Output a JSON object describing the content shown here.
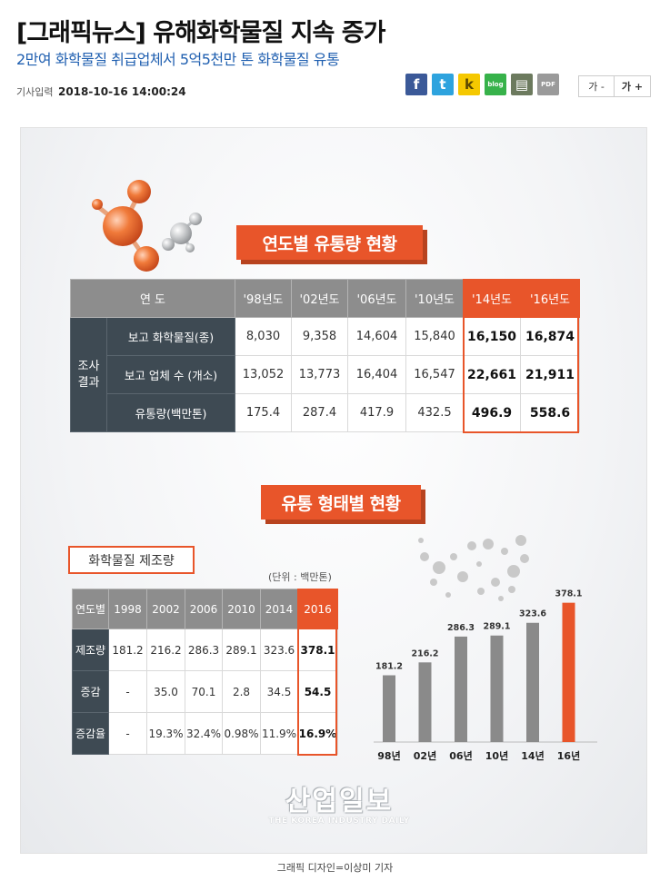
{
  "article": {
    "headline": "[그래픽뉴스] 유해화학물질 지속 증가",
    "subheadline": "2만여 화학물질 취급업체서 5억5천만 톤 화학물질 유통",
    "date_label": "기사입력",
    "date_value": "2018-10-16 14:00:24",
    "caption": "그래픽 디자인=이상미 기자"
  },
  "share_buttons": [
    {
      "icon": "facebook-icon",
      "glyph": "f"
    },
    {
      "icon": "twitter-icon",
      "glyph": "t"
    },
    {
      "icon": "kakaostory-icon",
      "glyph": "k"
    },
    {
      "icon": "blog-icon",
      "glyph": "blog"
    },
    {
      "icon": "print-icon",
      "glyph": "▤"
    },
    {
      "icon": "pdf-icon",
      "glyph": "PDF"
    }
  ],
  "font_controls": {
    "decrease": "가 -",
    "increase": "가 +"
  },
  "infographic": {
    "section1_title": "연도별 유통량 현황",
    "table1": {
      "corner": "연 도",
      "years": [
        "'98년도",
        "'02년도",
        "'06년도",
        "'10년도",
        "'14년도",
        "'16년도"
      ],
      "group_label": "조사\n결과",
      "rows": [
        {
          "label": "보고 화학물질(종)",
          "values": [
            "8,030",
            "9,358",
            "14,604",
            "15,840",
            "16,150",
            "16,874"
          ]
        },
        {
          "label": "보고 업체 수 (개소)",
          "values": [
            "13,052",
            "13,773",
            "16,404",
            "16,547",
            "22,661",
            "21,911"
          ]
        },
        {
          "label": "유통량(백만톤)",
          "values": [
            "175.4",
            "287.4",
            "417.9",
            "432.5",
            "496.9",
            "558.6"
          ]
        }
      ]
    },
    "section2_title": "유통 형태별 현황",
    "table2_title": "화학물질 제조량",
    "unit": "(단위 : 백만톤)",
    "table2": {
      "corner": "연도별",
      "years": [
        "1998",
        "2002",
        "2006",
        "2010",
        "2014",
        "2016"
      ],
      "rows": [
        {
          "label": "제조량",
          "values": [
            "181.2",
            "216.2",
            "286.3",
            "289.1",
            "323.6",
            "378.1"
          ]
        },
        {
          "label": "증감",
          "values": [
            "-",
            "35.0",
            "70.1",
            "2.8",
            "34.5",
            "54.5"
          ]
        },
        {
          "label": "증감율",
          "values": [
            "-",
            "19.3%",
            "32.4%",
            "0.98%",
            "11.9%",
            "16.9%"
          ]
        }
      ]
    },
    "watermark": {
      "main": "산업일보",
      "sub": "THE KOREA INDUSTRY DAILY"
    }
  },
  "chart_data": {
    "type": "bar",
    "categories": [
      "98년",
      "02년",
      "06년",
      "10년",
      "14년",
      "16년"
    ],
    "values": [
      181.2,
      216.2,
      286.3,
      289.1,
      323.6,
      378.1
    ],
    "value_labels": [
      "181.2",
      "216.2",
      "286.3",
      "289.1",
      "323.6",
      "378.1"
    ],
    "highlight_index": 5,
    "colors": {
      "bar": "#8a8a8a",
      "highlight": "#e8552a"
    },
    "title": "",
    "xlabel": "",
    "ylabel": "",
    "ylim": [
      0,
      400
    ],
    "grid": false
  },
  "colors": {
    "accent": "#e8552a",
    "dark": "#3e4a53",
    "header_gray": "#8d8d8d",
    "link_blue": "#1f5fb0"
  }
}
